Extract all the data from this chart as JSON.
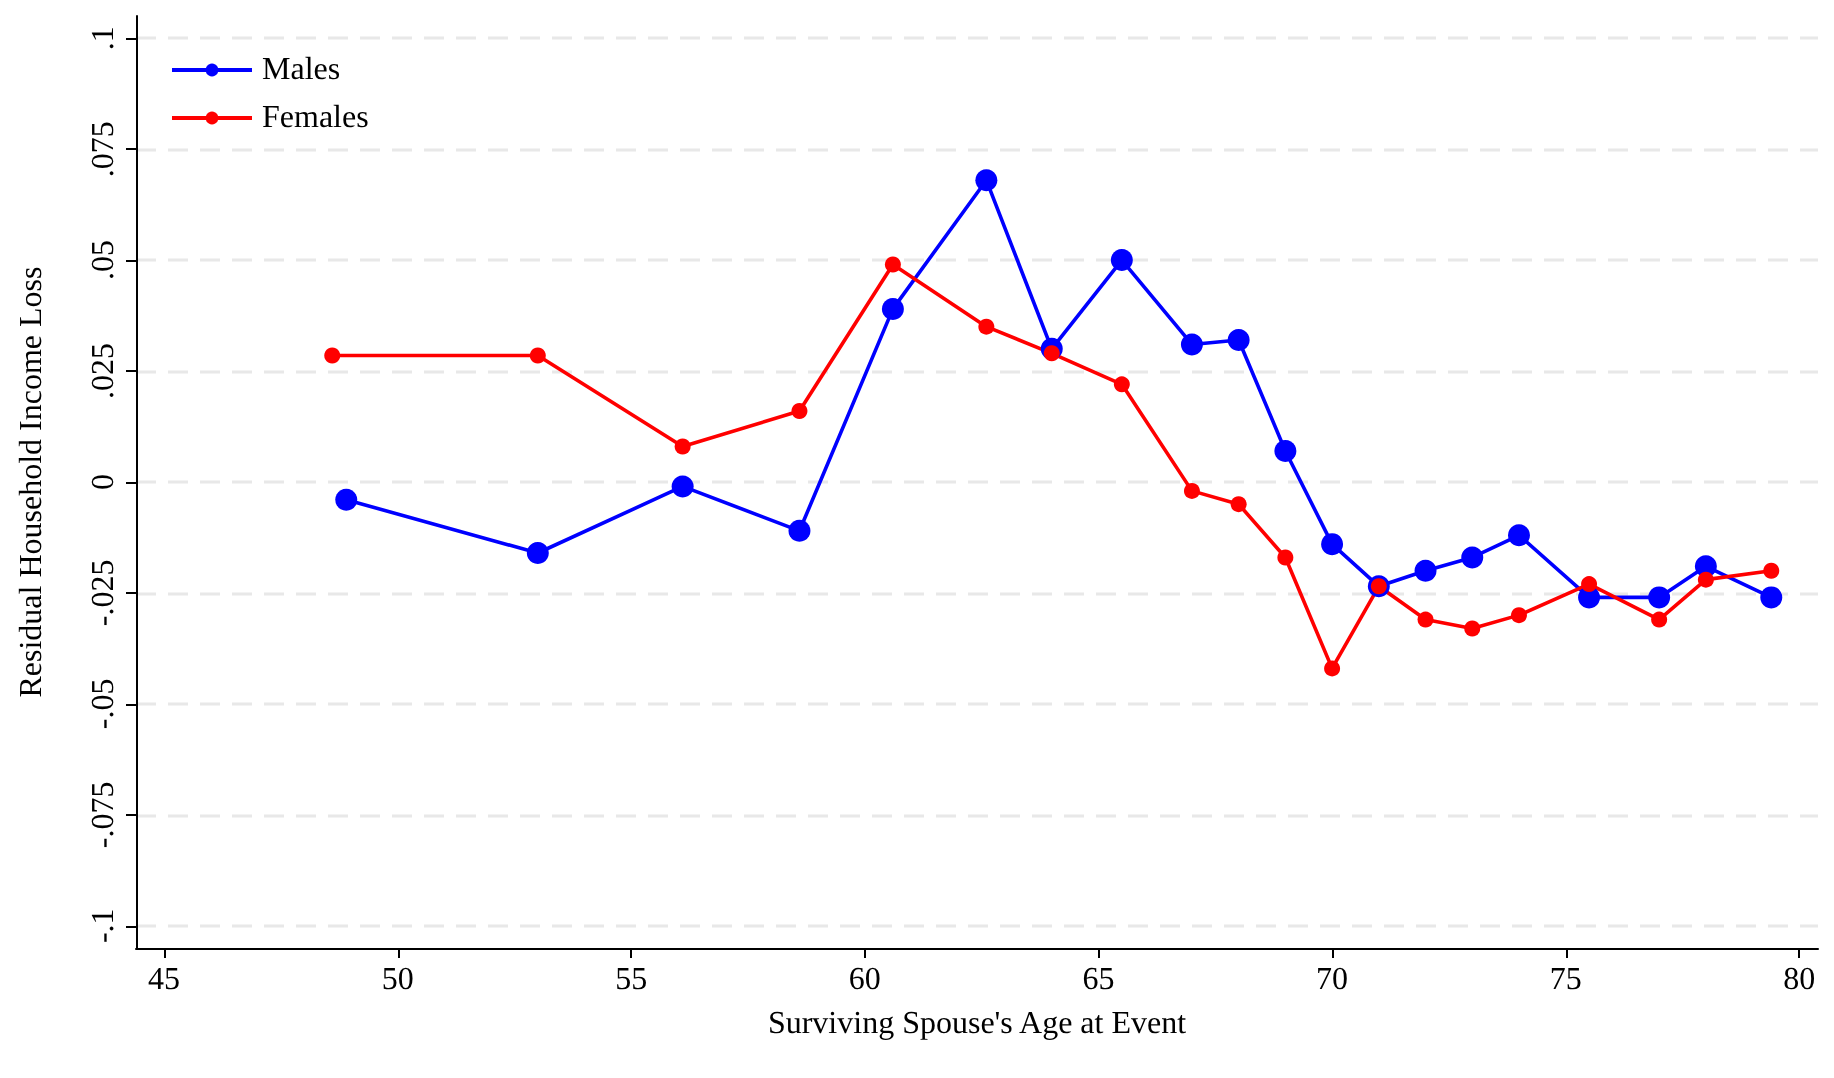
{
  "chart_data": {
    "type": "line",
    "xlabel": "Surviving Spouse's Age at Event",
    "ylabel": "Residual Household Income Loss",
    "xlim": [
      44.4,
      80.4
    ],
    "xticks": [
      45,
      50,
      55,
      60,
      65,
      70,
      75,
      80
    ],
    "ylim": [
      -0.105,
      0.105
    ],
    "yticks": [
      {
        "value": -0.1,
        "label": "-.1"
      },
      {
        "value": -0.075,
        "label": "-.075"
      },
      {
        "value": -0.05,
        "label": "-.05"
      },
      {
        "value": -0.025,
        "label": "-.025"
      },
      {
        "value": 0,
        "label": "0"
      },
      {
        "value": 0.025,
        "label": ".025"
      },
      {
        "value": 0.05,
        "label": ".05"
      },
      {
        "value": 0.075,
        "label": ".075"
      },
      {
        "value": 0.1,
        "label": ".1"
      }
    ],
    "grid": "y",
    "legend": "top left",
    "marker": "circle",
    "line_style": "solid",
    "series": [
      {
        "name": "Males",
        "color": "#0000ff",
        "x": [
          48.9,
          53,
          56.1,
          58.6,
          60.6,
          62.6,
          64,
          65.5,
          67,
          68,
          69,
          70,
          71,
          72,
          73,
          74,
          75.5,
          77,
          78,
          79.4
        ],
        "values": [
          -0.004,
          -0.016,
          -0.001,
          -0.011,
          0.039,
          0.068,
          0.03,
          0.05,
          0.031,
          0.032,
          0.007,
          -0.014,
          -0.0235,
          -0.02,
          -0.017,
          -0.012,
          -0.026,
          -0.026,
          -0.019,
          -0.026
        ]
      },
      {
        "name": "Females",
        "color": "#ff0000",
        "x": [
          48.6,
          53,
          56.1,
          58.6,
          60.6,
          62.6,
          64,
          65.5,
          67,
          68,
          69,
          70,
          71,
          72,
          73,
          74,
          75.5,
          77,
          78,
          79.4
        ],
        "values": [
          0.0285,
          0.0285,
          0.008,
          0.016,
          0.049,
          0.035,
          0.029,
          0.022,
          -0.002,
          -0.005,
          -0.017,
          -0.042,
          -0.0235,
          -0.031,
          -0.033,
          -0.03,
          -0.023,
          -0.031,
          -0.022,
          -0.02
        ]
      }
    ]
  }
}
